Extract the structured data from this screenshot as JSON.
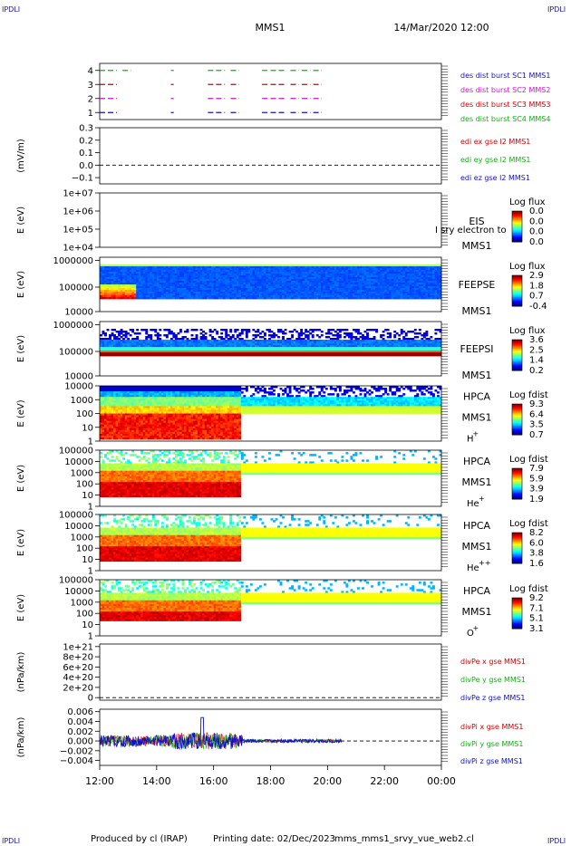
{
  "header": {
    "corner_tl": "IPDLI",
    "corner_tr": "IPDLI",
    "corner_bl": "IPDLI",
    "corner_br": "IPDLI",
    "spacecraft": "MMS1",
    "datetime": "14/Mar/2020 12:00"
  },
  "footer": {
    "produced": "Produced by cl (IRAP)",
    "printing_date": "Printing date: 02/Dec/2023",
    "filename": "mms_mms1_srvy_vue_web2.cl"
  },
  "x_axis": {
    "ticks": [
      "12:00",
      "14:00",
      "16:00",
      "18:00",
      "20:00",
      "22:00",
      "00:00"
    ],
    "range_hours": [
      12,
      24
    ]
  },
  "colors": {
    "blue": "#1010c8",
    "red": "#d00000",
    "green": "#10b010",
    "magenta": "#d010d0"
  },
  "chart_data": [
    {
      "type": "line",
      "id": "des_burst",
      "ylim": [
        0.5,
        4.5
      ],
      "yticks": [
        "4",
        "3",
        "2",
        "1"
      ],
      "series": [
        {
          "name": "des dist burst SC1 MMS1",
          "color": "#1010c8",
          "y": 1,
          "intervals": [
            [
              12.0,
              12.6
            ],
            [
              14.5,
              14.6
            ],
            [
              15.8,
              16.4
            ],
            [
              16.6,
              16.9
            ],
            [
              17.7,
              17.9
            ],
            [
              18.0,
              18.5
            ],
            [
              18.7,
              19.0
            ],
            [
              19.1,
              19.4
            ],
            [
              19.5,
              19.8
            ]
          ]
        },
        {
          "name": "des dist burst SC2 MMS2",
          "color": "#d010d0",
          "y": 2,
          "intervals": [
            [
              12.0,
              12.6
            ],
            [
              14.5,
              14.6
            ],
            [
              15.8,
              16.4
            ],
            [
              16.6,
              16.9
            ],
            [
              17.7,
              17.9
            ],
            [
              18.0,
              18.5
            ],
            [
              18.7,
              19.0
            ],
            [
              19.1,
              19.4
            ],
            [
              19.5,
              19.8
            ]
          ]
        },
        {
          "name": "des dist burst SC3 MMS3",
          "color": "#d00000",
          "y": 3,
          "intervals": [
            [
              12.0,
              12.6
            ],
            [
              14.5,
              14.6
            ],
            [
              15.8,
              16.4
            ],
            [
              16.6,
              16.9
            ],
            [
              17.7,
              17.9
            ],
            [
              18.0,
              18.5
            ],
            [
              18.7,
              19.0
            ],
            [
              19.1,
              19.4
            ],
            [
              19.5,
              19.8
            ]
          ]
        },
        {
          "name": "des dist burst SC4 MMS4",
          "color": "#10b010",
          "y": 4,
          "intervals": [
            [
              12.0,
              12.6
            ],
            [
              12.8,
              13.1
            ],
            [
              14.5,
              14.6
            ],
            [
              15.8,
              16.4
            ],
            [
              16.6,
              16.9
            ],
            [
              17.7,
              17.9
            ],
            [
              18.0,
              18.5
            ],
            [
              18.7,
              19.0
            ],
            [
              19.1,
              19.4
            ],
            [
              19.5,
              19.8
            ]
          ]
        }
      ]
    },
    {
      "type": "line",
      "id": "edi",
      "ylabel": "(mV/m)",
      "ylim": [
        -0.15,
        0.3
      ],
      "yticks": [
        "0.3",
        "0.2",
        "0.1",
        "0.0",
        "−0.1"
      ],
      "series": [
        {
          "name": "edi ex gse l2 MMS1",
          "color": "#d00000"
        },
        {
          "name": "edi ey gse l2 MMS1",
          "color": "#10b010"
        },
        {
          "name": "edi ez gse l2 MMS1",
          "color": "#1010c8"
        }
      ]
    },
    {
      "type": "heatmap",
      "id": "eis",
      "ylabel": "E (eV)",
      "yticks": [
        "1e+07",
        "1e+06",
        "1e+05",
        "1e+04"
      ],
      "labels": [
        "EIS",
        "MMS1"
      ],
      "overlap_label": "I sry electron to",
      "colorbar_title": "Log flux",
      "colorbar_values": [
        "0.0",
        "0.0",
        "0.0",
        "0.0"
      ]
    },
    {
      "type": "heatmap",
      "id": "feepse",
      "ylabel": "E (eV)",
      "yticks": [
        "1000000",
        "100000",
        "10000"
      ],
      "labels": [
        "FEEPSE",
        "MMS1"
      ],
      "colorbar_title": "Log flux",
      "colorbar_values": [
        "2.9",
        "1.8",
        "0.7",
        "-0.4"
      ]
    },
    {
      "type": "heatmap",
      "id": "feepsi",
      "ylabel": "E (eV)",
      "yticks": [
        "1000000",
        "100000",
        "10000"
      ],
      "labels": [
        "FEEPSI",
        "MMS1"
      ],
      "colorbar_title": "Log flux",
      "colorbar_values": [
        "3.6",
        "2.5",
        "1.4",
        "0.2"
      ]
    },
    {
      "type": "heatmap",
      "id": "hpca_h",
      "ylabel": "E (eV)",
      "yticks": [
        "10000",
        "1000",
        "100",
        "10",
        "1"
      ],
      "labels": [
        "HPCA",
        "MMS1"
      ],
      "species": "H",
      "species_sup": "+",
      "colorbar_title": "Log fdist",
      "colorbar_values": [
        "9.3",
        "6.4",
        "3.5",
        "0.7"
      ]
    },
    {
      "type": "heatmap",
      "id": "hpca_he",
      "ylabel": "E (eV)",
      "yticks": [
        "100000",
        "10000",
        "1000",
        "100",
        "10",
        "1"
      ],
      "labels": [
        "HPCA",
        "MMS1"
      ],
      "species": "He",
      "species_sup": "+",
      "colorbar_title": "Log fdist",
      "colorbar_values": [
        "7.9",
        "5.9",
        "3.9",
        "1.9"
      ]
    },
    {
      "type": "heatmap",
      "id": "hpca_hepp",
      "ylabel": "E (eV)",
      "yticks": [
        "100000",
        "10000",
        "1000",
        "100",
        "10",
        "1"
      ],
      "labels": [
        "HPCA",
        "MMS1"
      ],
      "species": "He",
      "species_sup": "++",
      "colorbar_title": "Log fdist",
      "colorbar_values": [
        "8.2",
        "6.0",
        "3.8",
        "1.6"
      ]
    },
    {
      "type": "heatmap",
      "id": "hpca_o",
      "ylabel": "E (eV)",
      "yticks": [
        "100000",
        "10000",
        "1000",
        "100",
        "10",
        "1"
      ],
      "labels": [
        "HPCA",
        "MMS1"
      ],
      "species": "O",
      "species_sup": "+",
      "colorbar_title": "Log fdist",
      "colorbar_values": [
        "9.2",
        "7.1",
        "5.1",
        "3.1"
      ]
    },
    {
      "type": "line",
      "id": "divpe",
      "ylabel": "(nPa/km)",
      "ylim": [
        -5e+19,
        1.05e+21
      ],
      "yticks": [
        "1e+21",
        "8e+20",
        "6e+20",
        "4e+20",
        "2e+20",
        "0"
      ],
      "series": [
        {
          "name": "divPe x gse MMS1",
          "color": "#d00000"
        },
        {
          "name": "divPe y gse MMS1",
          "color": "#10b010"
        },
        {
          "name": "divPe z gse MMS1",
          "color": "#1010c8"
        }
      ]
    },
    {
      "type": "line",
      "id": "divpi",
      "ylabel": "(nPa/km)",
      "ylim": [
        -0.005,
        0.0065
      ],
      "yticks": [
        "0.006",
        "0.004",
        "0.002",
        "0.000",
        "−0.002",
        "−0.004"
      ],
      "series": [
        {
          "name": "divPi x gse MMS1",
          "color": "#d00000"
        },
        {
          "name": "divPi y gse MMS1",
          "color": "#10b010"
        },
        {
          "name": "divPi z gse MMS1",
          "color": "#1010c8"
        }
      ]
    }
  ]
}
